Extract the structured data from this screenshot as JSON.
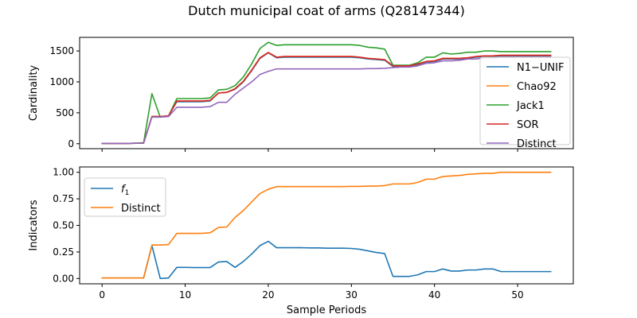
{
  "figure": {
    "title": "Dutch municipal coat of arms (Q28147344)"
  },
  "colors": {
    "blue": "#1f77b4",
    "orange": "#ff7f0e",
    "green": "#2ca02c",
    "red": "#d62728",
    "purple": "#9467bd"
  },
  "chart_data": [
    {
      "type": "line",
      "title": "",
      "xlabel": "",
      "ylabel": "Cardinality",
      "xlim": [
        -2.7,
        56.7
      ],
      "ylim": [
        -80,
        1720
      ],
      "xticks": [
        0,
        10,
        20,
        30,
        40,
        50
      ],
      "yticks": [
        0,
        500,
        1000,
        1500
      ],
      "ytick_labels": [
        "0",
        "500",
        "1000",
        "1500"
      ],
      "show_xtick_labels": false,
      "grid": false,
      "legend": {
        "placement": "right",
        "entries": [
          "N1−UNIF",
          "Chao92",
          "Jack1",
          "SOR",
          "Distinct"
        ]
      },
      "x": [
        0,
        1,
        2,
        3,
        4,
        5,
        6,
        7,
        8,
        9,
        10,
        11,
        12,
        13,
        14,
        15,
        16,
        17,
        18,
        19,
        20,
        21,
        22,
        23,
        24,
        25,
        26,
        27,
        28,
        29,
        30,
        31,
        32,
        33,
        34,
        35,
        36,
        37,
        38,
        39,
        40,
        41,
        42,
        43,
        44,
        45,
        46,
        47,
        48,
        49,
        50,
        51,
        52,
        53,
        54
      ],
      "series": [
        {
          "name": "N1−UNIF",
          "color": "#1f77b4",
          "values": [
            5,
            5,
            5,
            5,
            8,
            10,
            440,
            440,
            450,
            680,
            680,
            680,
            680,
            690,
            820,
            830,
            880,
            1000,
            1180,
            1380,
            1470,
            1390,
            1400,
            1400,
            1400,
            1400,
            1400,
            1400,
            1400,
            1400,
            1400,
            1390,
            1370,
            1360,
            1350,
            1250,
            1250,
            1250,
            1280,
            1320,
            1330,
            1370,
            1370,
            1370,
            1380,
            1400,
            1410,
            1410,
            1420,
            1420,
            1420,
            1420,
            1420,
            1420,
            1420
          ]
        },
        {
          "name": "Chao92",
          "color": "#ff7f0e",
          "values": [
            5,
            5,
            5,
            5,
            8,
            10,
            440,
            440,
            450,
            690,
            690,
            690,
            690,
            700,
            820,
            830,
            890,
            1010,
            1190,
            1390,
            1475,
            1400,
            1410,
            1410,
            1410,
            1410,
            1410,
            1410,
            1410,
            1410,
            1410,
            1400,
            1380,
            1370,
            1360,
            1260,
            1260,
            1260,
            1290,
            1330,
            1340,
            1380,
            1380,
            1380,
            1390,
            1410,
            1420,
            1420,
            1430,
            1430,
            1430,
            1430,
            1430,
            1430,
            1430
          ]
        },
        {
          "name": "Jack1",
          "color": "#2ca02c",
          "values": [
            5,
            5,
            5,
            5,
            10,
            15,
            810,
            430,
            450,
            730,
            730,
            730,
            730,
            740,
            870,
            880,
            940,
            1080,
            1290,
            1540,
            1640,
            1590,
            1600,
            1600,
            1600,
            1600,
            1600,
            1600,
            1600,
            1600,
            1600,
            1590,
            1560,
            1550,
            1530,
            1270,
            1270,
            1270,
            1310,
            1400,
            1400,
            1470,
            1450,
            1460,
            1480,
            1480,
            1500,
            1500,
            1490,
            1490,
            1490,
            1490,
            1490,
            1490,
            1490
          ]
        },
        {
          "name": "SOR",
          "color": "#d62728",
          "values": [
            5,
            5,
            5,
            5,
            8,
            10,
            440,
            440,
            450,
            690,
            690,
            690,
            690,
            700,
            820,
            830,
            890,
            1010,
            1190,
            1390,
            1475,
            1400,
            1410,
            1410,
            1410,
            1410,
            1410,
            1410,
            1410,
            1410,
            1410,
            1400,
            1380,
            1370,
            1360,
            1260,
            1260,
            1260,
            1290,
            1330,
            1340,
            1380,
            1380,
            1380,
            1390,
            1410,
            1420,
            1420,
            1430,
            1430,
            1430,
            1430,
            1430,
            1430,
            1430
          ]
        },
        {
          "name": "Distinct",
          "color": "#9467bd",
          "values": [
            5,
            5,
            5,
            5,
            8,
            10,
            430,
            430,
            440,
            590,
            590,
            590,
            590,
            600,
            670,
            670,
            800,
            900,
            1000,
            1120,
            1170,
            1210,
            1210,
            1210,
            1210,
            1210,
            1210,
            1210,
            1210,
            1210,
            1210,
            1210,
            1215,
            1215,
            1220,
            1230,
            1240,
            1240,
            1260,
            1300,
            1310,
            1340,
            1340,
            1350,
            1370,
            1370,
            1390,
            1390,
            1400,
            1400,
            1400,
            1400,
            1400,
            1400,
            1400
          ]
        }
      ]
    },
    {
      "type": "line",
      "title": "",
      "xlabel": "Sample Periods",
      "ylabel": "Indicators",
      "xlim": [
        -2.7,
        56.7
      ],
      "ylim": [
        -0.05,
        1.05
      ],
      "xticks": [
        0,
        10,
        20,
        30,
        40,
        50
      ],
      "xtick_labels": [
        "0",
        "10",
        "20",
        "30",
        "40",
        "50"
      ],
      "yticks": [
        0,
        0.25,
        0.5,
        0.75,
        1.0
      ],
      "ytick_labels": [
        "0.00",
        "0.25",
        "0.50",
        "0.75",
        "1.00"
      ],
      "show_xtick_labels": true,
      "grid": false,
      "legend": {
        "placement": "upper-left",
        "entries": [
          "f1",
          "Distinct"
        ]
      },
      "x": [
        0,
        1,
        2,
        3,
        4,
        5,
        6,
        7,
        8,
        9,
        10,
        11,
        12,
        13,
        14,
        15,
        16,
        17,
        18,
        19,
        20,
        21,
        22,
        23,
        24,
        25,
        26,
        27,
        28,
        29,
        30,
        31,
        32,
        33,
        34,
        35,
        36,
        37,
        38,
        39,
        40,
        41,
        42,
        43,
        44,
        45,
        46,
        47,
        48,
        49,
        50,
        51,
        52,
        53,
        54
      ],
      "series": [
        {
          "name": "f",
          "subscript": "1",
          "color": "#1f77b4",
          "values": [
            0.005,
            0.005,
            0.005,
            0.005,
            0.005,
            0.005,
            0.31,
            0.0,
            0.005,
            0.105,
            0.105,
            0.103,
            0.103,
            0.103,
            0.155,
            0.16,
            0.105,
            0.16,
            0.23,
            0.31,
            0.35,
            0.29,
            0.29,
            0.29,
            0.29,
            0.288,
            0.288,
            0.285,
            0.285,
            0.285,
            0.283,
            0.275,
            0.26,
            0.245,
            0.235,
            0.02,
            0.02,
            0.02,
            0.035,
            0.065,
            0.065,
            0.09,
            0.07,
            0.07,
            0.08,
            0.08,
            0.09,
            0.09,
            0.065,
            0.065,
            0.065,
            0.065,
            0.065,
            0.065,
            0.065
          ]
        },
        {
          "name": "Distinct",
          "color": "#ff7f0e",
          "values": [
            0.005,
            0.005,
            0.005,
            0.005,
            0.005,
            0.005,
            0.315,
            0.315,
            0.32,
            0.425,
            0.425,
            0.425,
            0.425,
            0.43,
            0.48,
            0.485,
            0.575,
            0.64,
            0.72,
            0.8,
            0.84,
            0.865,
            0.865,
            0.865,
            0.865,
            0.865,
            0.865,
            0.865,
            0.865,
            0.865,
            0.867,
            0.867,
            0.87,
            0.87,
            0.875,
            0.89,
            0.89,
            0.89,
            0.905,
            0.935,
            0.935,
            0.96,
            0.965,
            0.97,
            0.98,
            0.985,
            0.99,
            0.99,
            1.0,
            1.0,
            1.0,
            1.0,
            1.0,
            1.0,
            1.0
          ]
        }
      ]
    }
  ]
}
